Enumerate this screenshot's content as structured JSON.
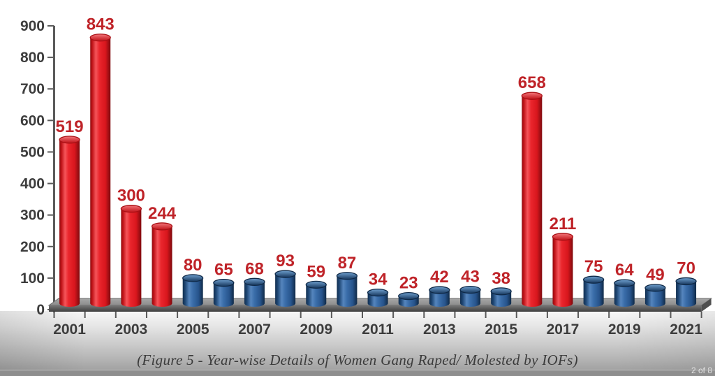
{
  "caption": {
    "text": "(Figure 5 - Year-wise Details of Women Gang Raped/ Molested by IOFs)"
  },
  "footer": {
    "page_indicator": "2 of 8"
  },
  "chart_data": {
    "type": "bar",
    "bar_style": "3d-cylinder",
    "title": "",
    "xlabel": "",
    "ylabel": "",
    "categories": [
      "2001",
      "2002",
      "2003",
      "2004",
      "2005",
      "2006",
      "2007",
      "2008",
      "2009",
      "2010",
      "2011",
      "2012",
      "2013",
      "2014",
      "2015",
      "2016",
      "2017",
      "2018",
      "2019",
      "2020",
      "2021"
    ],
    "values": [
      519,
      843,
      300,
      244,
      80,
      65,
      68,
      93,
      59,
      87,
      34,
      23,
      42,
      43,
      38,
      658,
      211,
      75,
      64,
      49,
      70
    ],
    "bar_colors": [
      "red",
      "red",
      "red",
      "red",
      "blue",
      "blue",
      "blue",
      "blue",
      "blue",
      "blue",
      "blue",
      "blue",
      "blue",
      "blue",
      "blue",
      "red",
      "red",
      "blue",
      "blue",
      "blue",
      "blue"
    ],
    "data_labels": [
      "519",
      "843",
      "300",
      "244",
      "80",
      "65",
      "68",
      "93",
      "59",
      "87",
      "34",
      "23",
      "42",
      "43",
      "38",
      "658",
      "211",
      "75",
      "64",
      "49",
      "70"
    ],
    "x_tick_labels_shown": [
      "2001",
      "2003",
      "2005",
      "2007",
      "2009",
      "2011",
      "2013",
      "2015",
      "2017",
      "2019",
      "2021"
    ],
    "y_tick_labels": [
      "0",
      "100",
      "200",
      "300",
      "400",
      "500",
      "600",
      "700",
      "800",
      "900"
    ],
    "ylim": [
      0,
      900
    ],
    "ytick_step": 100,
    "grid": false,
    "legend": null,
    "palette": {
      "red_bar": "#DD1B21",
      "blue_bar": "#2A5B97",
      "data_label": "#BF2328",
      "axis_text": "#3D3D3D",
      "axis_line": "#5A5A5A",
      "platform": "#4A4A4A"
    }
  }
}
